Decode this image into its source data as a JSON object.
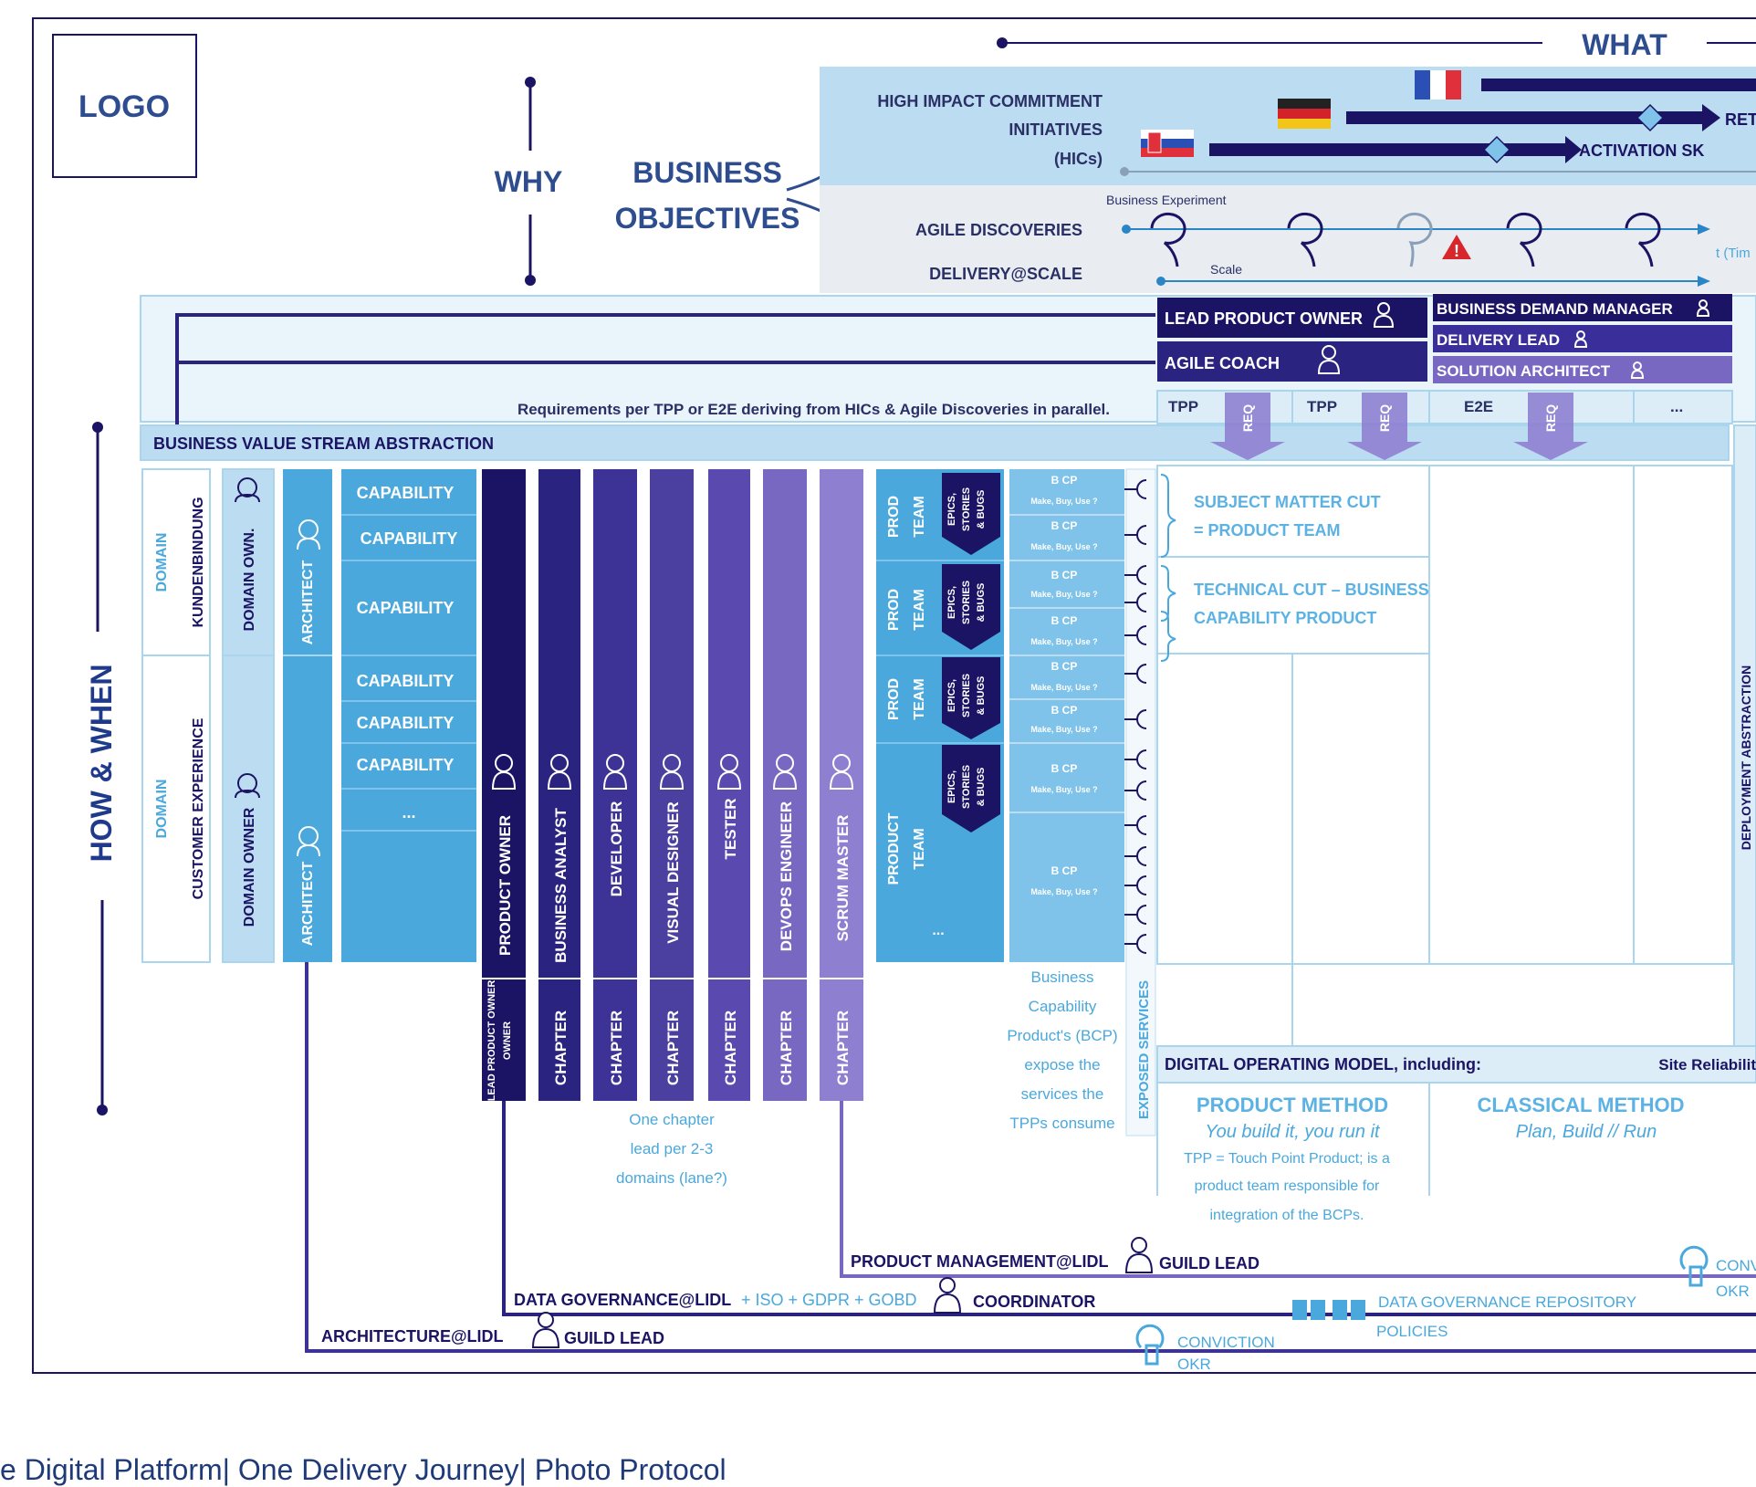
{
  "logo": "LOGO",
  "what": "WHAT",
  "why": "WHY",
  "how_when": "HOW & WHEN",
  "business_objectives": [
    "BUSINESS",
    "OBJECTIVES"
  ],
  "hic_label": [
    "HIGH IMPACT COMMITMENT",
    "INITIATIVES",
    "(HICs)"
  ],
  "hic_arrows": [
    "RET",
    "ACTIVATION SK"
  ],
  "business_experiment": "Business Experiment",
  "agile_discoveries": "AGILE DISCOVERIES",
  "delivery_scale": "DELIVERY@SCALE",
  "scale": "Scale",
  "time": "t (Tim",
  "roles_top": {
    "lead_product_owner": "LEAD PRODUCT OWNER",
    "agile_coach": "AGILE COACH",
    "business_demand_manager": "BUSINESS DEMAND MANAGER",
    "delivery_lead": "DELIVERY LEAD",
    "solution_architect": "SOLUTION ARCHITECT"
  },
  "tpp_headers": [
    "TPP",
    "TPP",
    "E2E",
    "..."
  ],
  "req": "REQ",
  "requirements_text": "Requirements per TPP or E2E deriving from HICs & Agile Discoveries in parallel.",
  "bvs_abstraction": "BUSINESS VALUE STREAM ABSTRACTION",
  "domain": "DOMAIN",
  "domain_names": [
    "KUNDENBINDUNG",
    "CUSTOMER EXPERIENCE"
  ],
  "domain_own": "DOMAIN OWN.",
  "domain_owner": "DOMAIN OWNER",
  "architect": "ARCHITECT",
  "capability": "CAPABILITY",
  "ellipsis": "...",
  "team_roles": [
    "PRODUCT OWNER",
    "BUSINESS ANALYST",
    "DEVELOPER",
    "VISUAL DESIGNER",
    "TESTER",
    "DEVOPS ENGINEER",
    "SCRUM MASTER"
  ],
  "chapter_labels": [
    "LEAD PRODUCT OWNER",
    "CHAPTER",
    "CHAPTER",
    "CHAPTER",
    "CHAPTER",
    "CHAPTER",
    "CHAPTER"
  ],
  "prod_team": [
    "PROD",
    "TEAM"
  ],
  "product_team": [
    "PRODUCT",
    "TEAM"
  ],
  "epics": [
    "EPICS,",
    "STORIES",
    "& BUGS"
  ],
  "bcp": "B CP",
  "make_buy_use": "Make, Buy, Use ?",
  "subject_matter_cut": [
    "SUBJECT MATTER CUT",
    "= PRODUCT TEAM"
  ],
  "technical_cut": [
    "TECHNICAL CUT – BUSINESS",
    "CAPABILITY PRODUCT"
  ],
  "deployment_abstraction": "DEPLOYMENT ABSTRACTION",
  "bcp_expose": [
    "Business",
    "Capability",
    "Product's (BCP)",
    "expose the",
    "services the",
    "TPPs consume"
  ],
  "exposed_services": "EXPOSED SERVICES",
  "chapter_note": [
    "One chapter",
    "lead per 2-3",
    "domains (lane?)"
  ],
  "dom_header": "DIGITAL OPERATING MODEL, including:",
  "site_reliability": "Site Reliabilit",
  "product_method": {
    "title": "PRODUCT METHOD",
    "subtitle": "You build it, you run it",
    "desc": [
      "TPP = Touch Point Product; is a",
      "product team responsible for",
      "integration of the BCPs."
    ]
  },
  "classical_method": {
    "title": "CLASSICAL METHOD",
    "subtitle": "Plan, Build // Run"
  },
  "guilds": {
    "product_mgmt": "PRODUCT MANAGEMENT@LIDL",
    "guild_lead": "GUILD LEAD",
    "data_gov": "DATA GOVERNANCE@LIDL",
    "data_gov_extra": "+ ISO + GDPR + GOBD",
    "coordinator": "COORDINATOR",
    "architecture": "ARCHITECTURE@LIDL",
    "conviction": "CONVICTION",
    "okr": "OKR",
    "conv_short": "CONV",
    "data_repo": "DATA GOVERNANCE REPOSITORY",
    "policies": "POLICIES"
  },
  "footer": "e Digital Platform| One Delivery Journey| Photo Protocol",
  "colors": {
    "navy": "#1b1464",
    "dark_blue": "#2a2380",
    "mid_purple": "#4b3fa0",
    "purple": "#5a4ab0",
    "lavender": "#7868c2",
    "light_purple": "#8e7fd0",
    "cap_blue": "#4aa8dc",
    "light_blue": "#a9d5ef",
    "pale_blue": "#dcedf8",
    "grey_band": "#e9edf2",
    "heading_blue": "#2e4d8f"
  }
}
